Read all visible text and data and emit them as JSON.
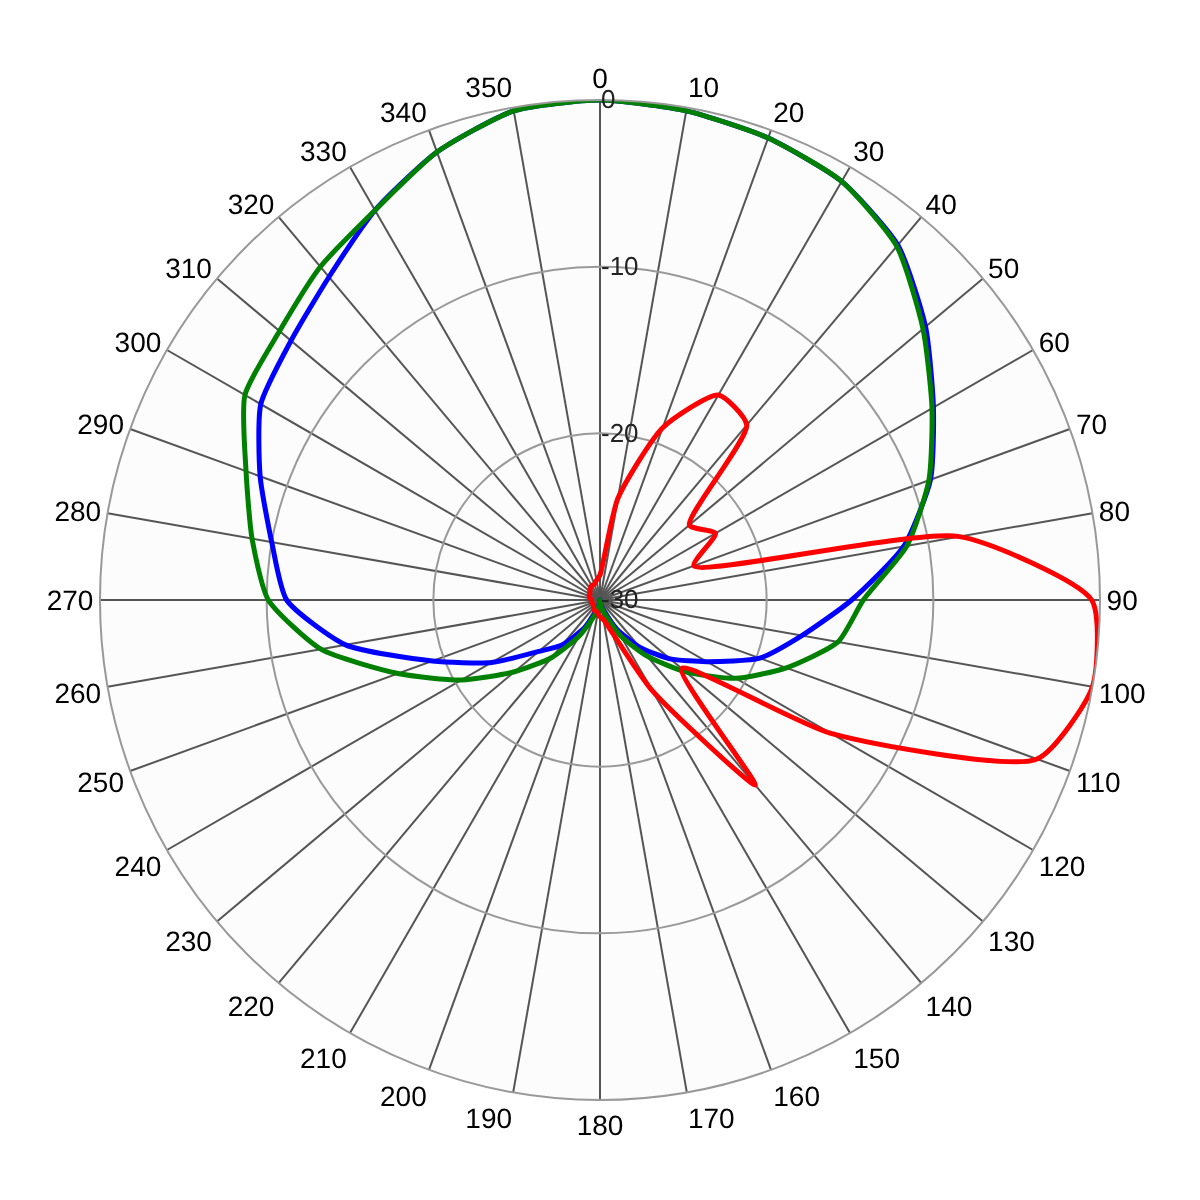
{
  "chart_data": {
    "type": "radar",
    "categories": [
      "0",
      "10",
      "20",
      "30",
      "40",
      "50",
      "60",
      "70",
      "80",
      "90",
      "100",
      "110",
      "120",
      "130",
      "140",
      "150",
      "160",
      "170",
      "180",
      "190",
      "200",
      "210",
      "220",
      "230",
      "240",
      "250",
      "260",
      "270",
      "280",
      "290",
      "300",
      "310",
      "320",
      "330",
      "340",
      "350"
    ],
    "ylim": [
      -30,
      0
    ],
    "yticks": [
      -30,
      -20,
      -10,
      0
    ],
    "grid": true,
    "series": [
      {
        "color": "#0000ff",
        "values": [
          0,
          -0.2,
          -0.5,
          -1.0,
          -2.2,
          -4.5,
          -6.9,
          -8.9,
          -11.5,
          -14.9,
          -17.7,
          -19.8,
          -22.6,
          -24.5,
          -26.3,
          -28,
          -29.2,
          -29.7,
          -30,
          -29.8,
          -29.2,
          -28,
          -26.5,
          -25.2,
          -22.5,
          -19.3,
          -14.5,
          -11.2,
          -10,
          -8.3,
          -6.5,
          -5.8,
          -4.7,
          -3.0,
          -1.4,
          -0.2
        ]
      },
      {
        "color": "#008000",
        "values": [
          0,
          -0.2,
          -0.5,
          -1.0,
          -2.3,
          -4.7,
          -7.0,
          -9.0,
          -11.3,
          -14.2,
          -15.5,
          -18.1,
          -20.6,
          -23.3,
          -25.6,
          -27.5,
          -29,
          -29.6,
          -30,
          -29.7,
          -29,
          -27.5,
          -25.5,
          -23.3,
          -20.4,
          -17.1,
          -13,
          -10.1,
          -8.8,
          -7.4,
          -5.4,
          -4.9,
          -3.9,
          -3.0,
          -1.4,
          -0.2
        ]
      },
      {
        "color": "#ff0000",
        "values": [
          -28.5,
          -23.8,
          -19,
          -15.8,
          -16.3,
          -23,
          -22,
          -24,
          -8.1,
          -0.5,
          0,
          -2.1,
          -14,
          -23.6,
          -15.5,
          -23.7,
          -28,
          -28.8,
          -29,
          -29.2,
          -29.3,
          -29.3,
          -29.4,
          -29.5,
          -29.5,
          -29.5,
          -29.5,
          -29.5,
          -29.4,
          -29.3,
          -29.3,
          -29.2,
          -29.1,
          -29,
          -29,
          -28.8
        ]
      }
    ]
  }
}
